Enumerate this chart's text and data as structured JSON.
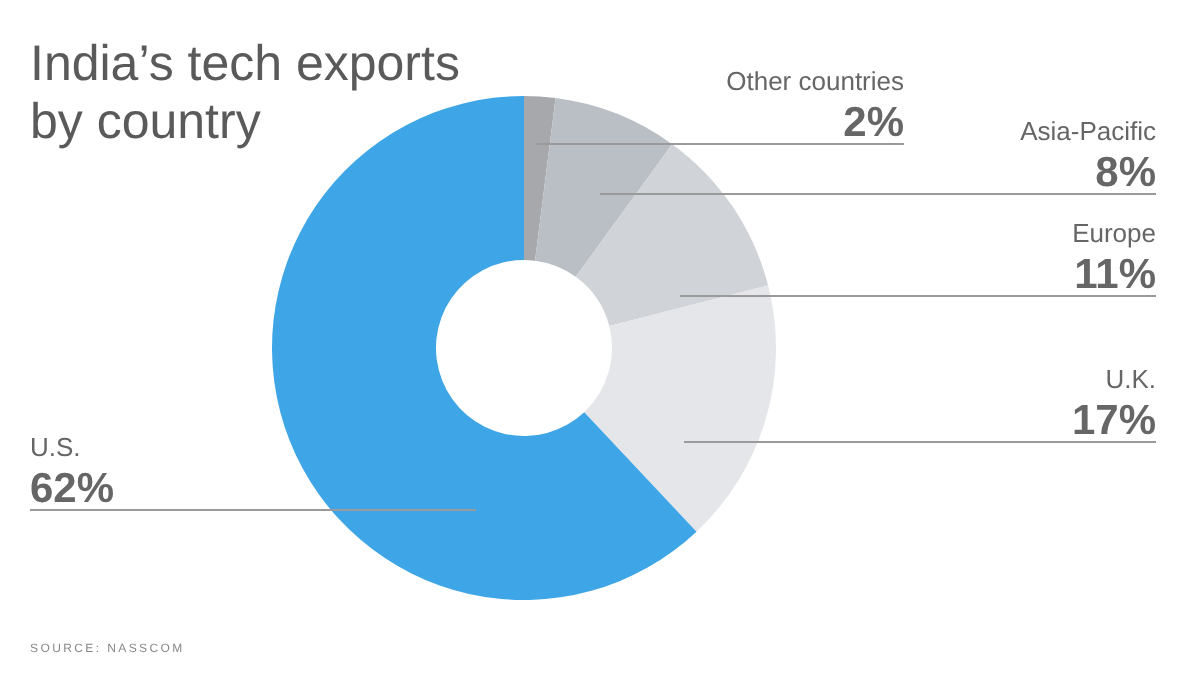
{
  "chart_data": {
    "type": "donut",
    "title": "India’s tech exports by country",
    "categories": [
      "Other countries",
      "Asia-Pacific",
      "Europe",
      "U.K.",
      "U.S."
    ],
    "values": [
      2,
      8,
      11,
      17,
      62
    ],
    "colors": [
      "#a6a8ab",
      "#babfc5",
      "#d0d3d7",
      "#e5e6e9",
      "#3ea5e7"
    ],
    "value_labels": [
      "2%",
      "8%",
      "11%",
      "17%",
      "62%"
    ],
    "annotations": [
      "SOURCE: NASSCOM"
    ]
  }
}
